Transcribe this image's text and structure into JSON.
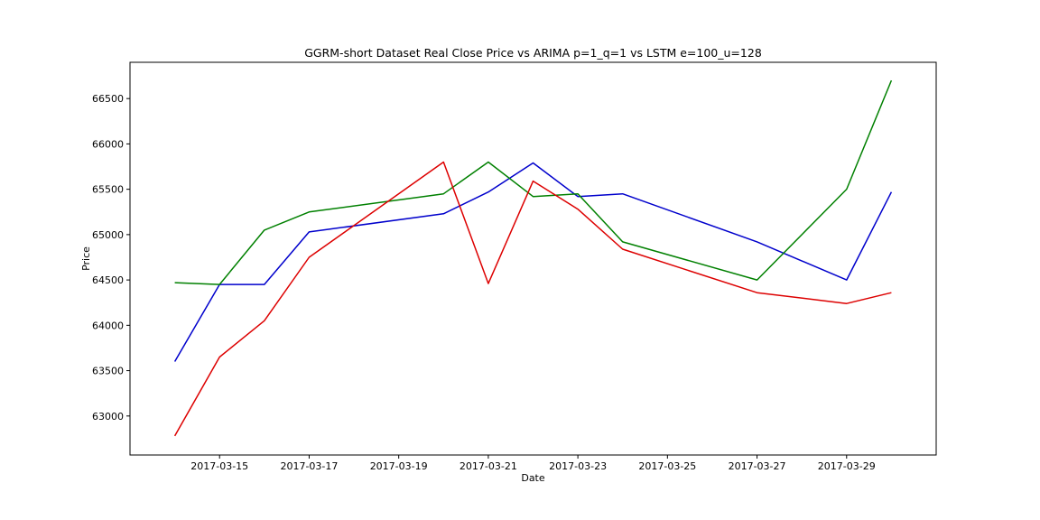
{
  "chart_data": {
    "type": "line",
    "title": "GGRM-short Dataset Real Close Price vs ARIMA p=1_q=1 vs LSTM e=100_u=128",
    "xlabel": "Date",
    "ylabel": "Price",
    "x": [
      "2017-03-14",
      "2017-03-15",
      "2017-03-16",
      "2017-03-17",
      "2017-03-20",
      "2017-03-21",
      "2017-03-22",
      "2017-03-23",
      "2017-03-24",
      "2017-03-27",
      "2017-03-29",
      "2017-03-30"
    ],
    "xlim": [
      "2017-03-13",
      "2017-03-31"
    ],
    "xticks": [
      "2017-03-15",
      "2017-03-17",
      "2017-03-19",
      "2017-03-21",
      "2017-03-23",
      "2017-03-25",
      "2017-03-27",
      "2017-03-29"
    ],
    "ylim": [
      62570,
      66900
    ],
    "yticks": [
      63000,
      63500,
      64000,
      64500,
      65000,
      65500,
      66000,
      66500
    ],
    "grid": false,
    "series": [
      {
        "color": "#0000cc",
        "values": [
          63600,
          64450,
          64450,
          65030,
          65230,
          65470,
          65790,
          65420,
          65450,
          64920,
          64500,
          65470
        ]
      },
      {
        "color": "#008000",
        "values": [
          64470,
          64450,
          65050,
          65250,
          65450,
          65800,
          65420,
          65450,
          64920,
          64500,
          65500,
          66700
        ]
      },
      {
        "color": "#dd0000",
        "values": [
          62780,
          63650,
          64050,
          64750,
          65800,
          64460,
          65590,
          65280,
          64840,
          64360,
          64240,
          64360
        ]
      }
    ]
  }
}
